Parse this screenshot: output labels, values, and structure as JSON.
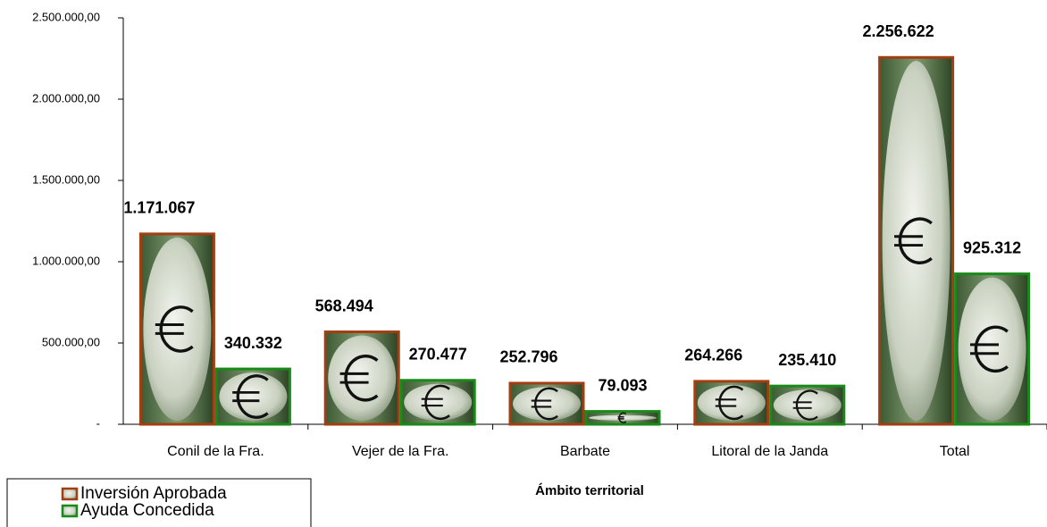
{
  "chart_data": {
    "type": "bar",
    "x_label": "Ámbito territorial",
    "categories": [
      "Conil de la Fra.",
      "Vejer de la Fra.",
      "Barbate",
      "Litoral de la Janda",
      "Total"
    ],
    "series": [
      {
        "name": "Inversión Aprobada",
        "color": "#a33d12",
        "values": [
          1171067,
          568494,
          252796,
          264266,
          2256622
        ],
        "value_labels": [
          "1.171.067",
          "568.494",
          "252.796",
          "264.266",
          "2.256.622"
        ]
      },
      {
        "name": "Ayuda Concedida",
        "color": "#178a17",
        "values": [
          340332,
          270477,
          79093,
          235410,
          925312
        ],
        "value_labels": [
          "340.332",
          "270.477",
          "79.093",
          "235.410",
          "925.312"
        ]
      }
    ],
    "ylim": [
      0,
      2500000
    ],
    "yticks": [
      {
        "value": 0,
        "label": "-"
      },
      {
        "value": 500000,
        "label": "500.000,00"
      },
      {
        "value": 1000000,
        "label": "1.000.000,00"
      },
      {
        "value": 1500000,
        "label": "1.500.000,00"
      },
      {
        "value": 2000000,
        "label": "2.000.000,00"
      },
      {
        "value": 2500000,
        "label": "2.500.000,00"
      }
    ],
    "legend": "bottom-left"
  }
}
